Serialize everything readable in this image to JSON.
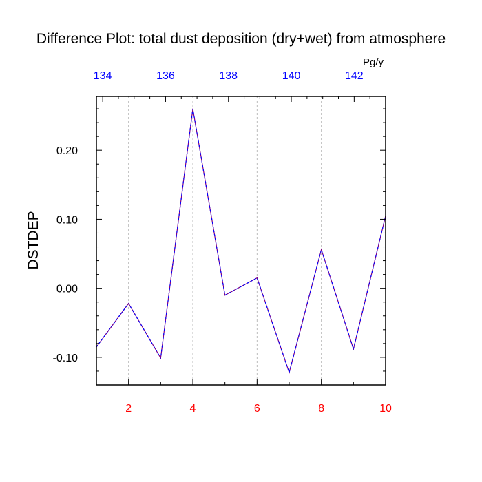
{
  "chart_data": {
    "type": "line",
    "title": "Difference Plot: total dust deposition (dry+wet) from atmosphere",
    "ylabel": "DSTDEP",
    "top_axis_units": "Pg/y",
    "x": [
      1,
      2,
      3,
      4,
      5,
      6,
      7,
      8,
      9,
      10
    ],
    "xlim": [
      1,
      10
    ],
    "ylim": [
      -0.14,
      0.278
    ],
    "top_xlim": [
      133.8,
      143.0
    ],
    "x_ticks": [
      2,
      4,
      6,
      8,
      10
    ],
    "x_tick_labels": [
      "2",
      "4",
      "6",
      "8",
      "10"
    ],
    "y_ticks": [
      -0.1,
      0.0,
      0.1,
      0.2
    ],
    "y_tick_labels": [
      "-0.10",
      "0.00",
      "0.10",
      "0.20"
    ],
    "top_ticks": [
      134,
      136,
      138,
      140,
      142
    ],
    "top_tick_labels": [
      "134",
      "136",
      "138",
      "140",
      "142"
    ],
    "vertical_grid": true,
    "series": [
      {
        "values": [
          -0.085,
          -0.022,
          -0.101,
          0.26,
          -0.01,
          0.015,
          -0.122,
          0.056,
          -0.088,
          0.105
        ],
        "color": "#800080",
        "overlay_color": "#0000ff",
        "style": "dashed"
      }
    ],
    "colors": {
      "bottom_ticks": "#ff0000",
      "top_ticks": "#0000ff",
      "axis": "#000000",
      "grid": "#bbbbbb"
    }
  }
}
